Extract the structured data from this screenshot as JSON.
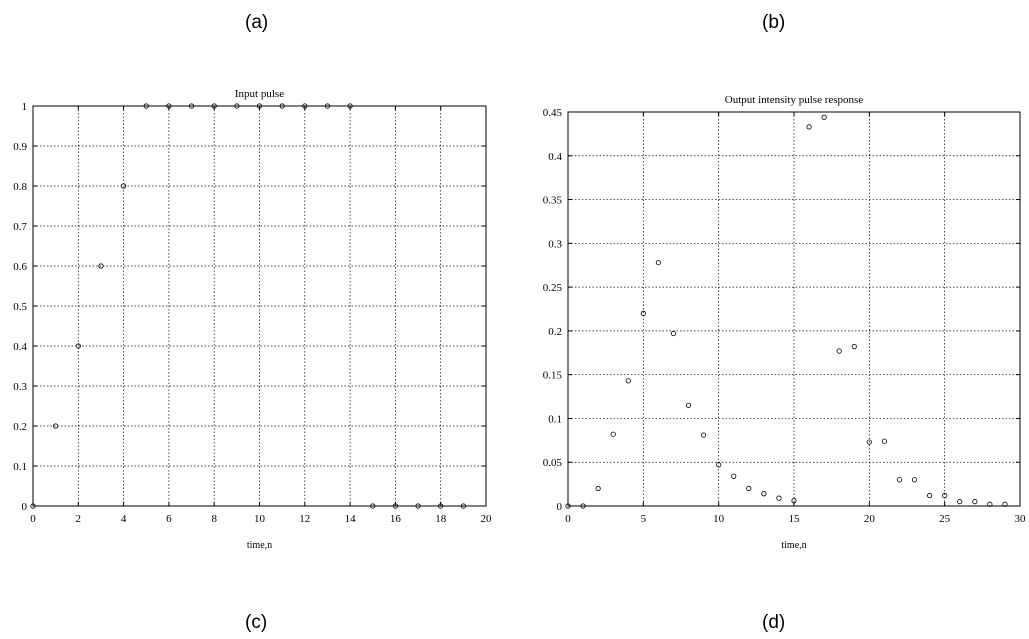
{
  "panel_tags": [
    "(a)",
    "(b)",
    "(c)",
    "(d)"
  ],
  "chart_data": [
    {
      "type": "scatter",
      "title": "Input pulse",
      "xlabel": "time,n",
      "ylabel": "",
      "xlim": [
        0,
        20
      ],
      "ylim": [
        0,
        1
      ],
      "xticks": [
        "0",
        "2",
        "4",
        "6",
        "8",
        "10",
        "12",
        "14",
        "16",
        "18",
        "20"
      ],
      "yticks": [
        "0",
        "0.1",
        "0.2",
        "0.3",
        "0.4",
        "0.5",
        "0.6",
        "0.7",
        "0.8",
        "0.9",
        "1"
      ],
      "grid": true,
      "marker": "circle",
      "x": [
        0,
        1,
        2,
        3,
        4,
        5,
        6,
        7,
        8,
        9,
        10,
        11,
        12,
        13,
        14,
        15,
        16,
        17,
        18,
        19
      ],
      "y": [
        0,
        0.2,
        0.4,
        0.6,
        0.8,
        1,
        1,
        1,
        1,
        1,
        1,
        1,
        1,
        1,
        1,
        0,
        0,
        0,
        0,
        0
      ]
    },
    {
      "type": "scatter",
      "title": "Output intensity pulse response",
      "xlabel": "time,n",
      "ylabel": "",
      "xlim": [
        0,
        30
      ],
      "ylim": [
        0,
        0.45
      ],
      "xticks": [
        "0",
        "5",
        "10",
        "15",
        "20",
        "25",
        "30"
      ],
      "yticks": [
        "0",
        "0.05",
        "0.1",
        "0.15",
        "0.2",
        "0.25",
        "0.3",
        "0.35",
        "0.4",
        "0.45"
      ],
      "grid": true,
      "marker": "circle",
      "x": [
        0,
        1,
        2,
        3,
        4,
        5,
        6,
        7,
        8,
        9,
        10,
        11,
        12,
        13,
        14,
        15,
        16,
        17,
        18,
        19,
        20,
        21,
        22,
        23,
        24,
        25,
        26,
        27,
        28,
        29
      ],
      "y": [
        0,
        0,
        0.02,
        0.082,
        0.143,
        0.22,
        0.278,
        0.197,
        0.115,
        0.081,
        0.047,
        0.034,
        0.02,
        0.014,
        0.009,
        0.006,
        0.433,
        0.444,
        0.177,
        0.182,
        0.073,
        0.074,
        0.03,
        0.03,
        0.012,
        0.012,
        0.005,
        0.005,
        0.002,
        0.002
      ]
    }
  ]
}
